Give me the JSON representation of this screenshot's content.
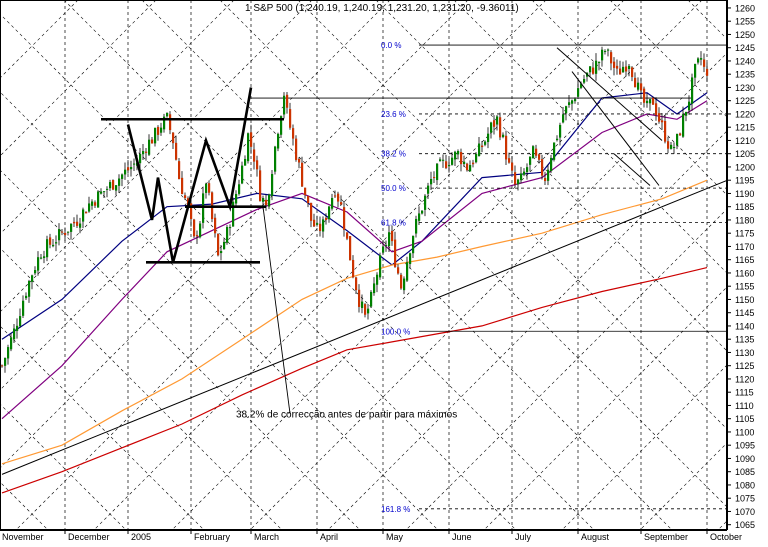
{
  "chart_data": {
    "type": "candlestick",
    "header": "1 S&P 500 (1,240.19, 1,240.19, 1,231.20, 1,231.20, -9.36011)",
    "x_months": [
      "November",
      "December",
      "2005",
      "February",
      "March",
      "April",
      "May",
      "June",
      "July",
      "August",
      "September",
      "October"
    ],
    "y_ticks": [
      1065,
      1070,
      1075,
      1080,
      1085,
      1090,
      1095,
      1100,
      1105,
      1110,
      1115,
      1120,
      1125,
      1130,
      1135,
      1140,
      1145,
      1150,
      1155,
      1160,
      1165,
      1170,
      1175,
      1180,
      1185,
      1190,
      1195,
      1200,
      1205,
      1210,
      1215,
      1220,
      1225,
      1230,
      1235,
      1240,
      1245,
      1250,
      1255,
      1260
    ],
    "ylim": [
      1063,
      1263
    ],
    "price_path": [
      [
        0,
        1125
      ],
      [
        4,
        1138
      ],
      [
        7,
        1150
      ],
      [
        10,
        1160
      ],
      [
        13,
        1168
      ],
      [
        17,
        1172
      ],
      [
        21,
        1176
      ],
      [
        25,
        1180
      ],
      [
        29,
        1186
      ],
      [
        33,
        1190
      ],
      [
        37,
        1194
      ],
      [
        41,
        1198
      ],
      [
        45,
        1202
      ],
      [
        48,
        1208
      ],
      [
        51,
        1212
      ],
      [
        53,
        1216
      ],
      [
        55,
        1218
      ],
      [
        57,
        1210
      ],
      [
        59,
        1196
      ],
      [
        60,
        1192
      ],
      [
        62,
        1184
      ],
      [
        64,
        1172
      ],
      [
        66,
        1180
      ],
      [
        68,
        1195
      ],
      [
        70,
        1180
      ],
      [
        72,
        1166
      ],
      [
        75,
        1175
      ],
      [
        78,
        1190
      ],
      [
        80,
        1200
      ],
      [
        82,
        1212
      ],
      [
        84,
        1204
      ],
      [
        86,
        1190
      ],
      [
        88,
        1185
      ],
      [
        90,
        1200
      ],
      [
        92,
        1215
      ],
      [
        94,
        1228
      ],
      [
        95,
        1220
      ],
      [
        97,
        1210
      ],
      [
        99,
        1200
      ],
      [
        101,
        1190
      ],
      [
        103,
        1180
      ],
      [
        105,
        1176
      ],
      [
        107,
        1178
      ],
      [
        109,
        1186
      ],
      [
        111,
        1192
      ],
      [
        113,
        1185
      ],
      [
        115,
        1172
      ],
      [
        117,
        1160
      ],
      [
        119,
        1150
      ],
      [
        121,
        1143
      ],
      [
        123,
        1150
      ],
      [
        125,
        1160
      ],
      [
        127,
        1168
      ],
      [
        129,
        1175
      ],
      [
        131,
        1165
      ],
      [
        133,
        1155
      ],
      [
        135,
        1165
      ],
      [
        137,
        1175
      ],
      [
        140,
        1185
      ],
      [
        143,
        1195
      ],
      [
        146,
        1200
      ],
      [
        149,
        1203
      ],
      [
        152,
        1205
      ],
      [
        155,
        1200
      ],
      [
        158,
        1204
      ],
      [
        161,
        1210
      ],
      [
        163,
        1215
      ],
      [
        165,
        1218
      ],
      [
        167,
        1210
      ],
      [
        169,
        1200
      ],
      [
        171,
        1193
      ],
      [
        173,
        1195
      ],
      [
        175,
        1200
      ],
      [
        177,
        1205
      ],
      [
        179,
        1200
      ],
      [
        181,
        1196
      ],
      [
        183,
        1205
      ],
      [
        185,
        1212
      ],
      [
        187,
        1220
      ],
      [
        190,
        1225
      ],
      [
        193,
        1232
      ],
      [
        196,
        1236
      ],
      [
        199,
        1240
      ],
      [
        201,
        1244
      ],
      [
        203,
        1240
      ],
      [
        205,
        1235
      ],
      [
        207,
        1238
      ],
      [
        209,
        1240
      ],
      [
        211,
        1233
      ],
      [
        213,
        1226
      ],
      [
        215,
        1222
      ],
      [
        217,
        1225
      ],
      [
        219,
        1218
      ],
      [
        221,
        1212
      ],
      [
        223,
        1206
      ],
      [
        225,
        1210
      ],
      [
        227,
        1218
      ],
      [
        229,
        1226
      ],
      [
        231,
        1236
      ],
      [
        233,
        1241
      ],
      [
        235,
        1233
      ]
    ],
    "moving_averages": [
      {
        "color": "#000080",
        "points": [
          [
            0,
            1135
          ],
          [
            20,
            1150
          ],
          [
            40,
            1172
          ],
          [
            55,
            1185
          ],
          [
            70,
            1186
          ],
          [
            85,
            1190
          ],
          [
            100,
            1188
          ],
          [
            115,
            1176
          ],
          [
            130,
            1163
          ],
          [
            140,
            1172
          ],
          [
            160,
            1196
          ],
          [
            180,
            1198
          ],
          [
            200,
            1226
          ],
          [
            215,
            1228
          ],
          [
            225,
            1220
          ],
          [
            235,
            1228
          ]
        ]
      },
      {
        "color": "#800080",
        "points": [
          [
            0,
            1105
          ],
          [
            20,
            1125
          ],
          [
            40,
            1150
          ],
          [
            55,
            1168
          ],
          [
            70,
            1176
          ],
          [
            85,
            1184
          ],
          [
            100,
            1190
          ],
          [
            115,
            1183
          ],
          [
            130,
            1168
          ],
          [
            140,
            1172
          ],
          [
            160,
            1190
          ],
          [
            180,
            1196
          ],
          [
            200,
            1213
          ],
          [
            215,
            1220
          ],
          [
            225,
            1218
          ],
          [
            235,
            1225
          ]
        ]
      },
      {
        "color": "#ff9933",
        "points": [
          [
            0,
            1088
          ],
          [
            20,
            1095
          ],
          [
            40,
            1108
          ],
          [
            60,
            1120
          ],
          [
            80,
            1135
          ],
          [
            100,
            1150
          ],
          [
            115,
            1158
          ],
          [
            130,
            1163
          ],
          [
            145,
            1166
          ],
          [
            160,
            1170
          ],
          [
            180,
            1175
          ],
          [
            200,
            1182
          ],
          [
            220,
            1188
          ],
          [
            235,
            1195
          ]
        ]
      },
      {
        "color": "#cc0000",
        "points": [
          [
            0,
            1077
          ],
          [
            20,
            1085
          ],
          [
            40,
            1094
          ],
          [
            60,
            1103
          ],
          [
            80,
            1114
          ],
          [
            100,
            1124
          ],
          [
            115,
            1131
          ],
          [
            130,
            1134
          ],
          [
            145,
            1137
          ],
          [
            160,
            1140
          ],
          [
            180,
            1147
          ],
          [
            200,
            1153
          ],
          [
            220,
            1158
          ],
          [
            235,
            1162
          ]
        ]
      }
    ],
    "trendline": {
      "from": [
        0,
        1084
      ],
      "to": [
        244,
        1196
      ]
    },
    "fibonacci": [
      {
        "label": "0.0 %",
        "value": 1246,
        "from": 129,
        "to": 244,
        "dashed": false
      },
      {
        "label": "23.6 %",
        "value": 1220,
        "from": 129,
        "to": 244,
        "dashed": true
      },
      {
        "label": "38.2 %",
        "value": 1205,
        "from": 129,
        "to": 244,
        "dashed": true
      },
      {
        "label": "50.0 %",
        "value": 1192,
        "from": 129,
        "to": 244,
        "dashed": true
      },
      {
        "label": "61.8 %",
        "value": 1179,
        "from": 129,
        "to": 244,
        "dashed": true
      },
      {
        "label": "100.0 %",
        "value": 1138,
        "from": 129,
        "to": 244,
        "dashed": false
      },
      {
        "label": "161.8 %",
        "value": 1071,
        "from": 129,
        "to": 244,
        "dashed": true
      }
    ],
    "resistance_line": {
      "from": [
        83,
        1226
      ],
      "to": [
        230,
        1226
      ]
    },
    "pattern": {
      "top_line": {
        "from": [
          33,
          1218
        ],
        "to": [
          94,
          1218
        ]
      },
      "mid_line": {
        "from": [
          61,
          1185
        ],
        "to": [
          88,
          1185
        ]
      },
      "bottom_line": {
        "from": [
          48,
          1164
        ],
        "to": [
          86,
          1164
        ]
      },
      "zigzag": [
        [
          42,
          1216
        ],
        [
          50,
          1180
        ],
        [
          52,
          1196
        ],
        [
          57,
          1164
        ],
        [
          68,
          1210
        ],
        [
          76,
          1185
        ],
        [
          83,
          1230
        ]
      ],
      "pointer": {
        "from": [
          87,
          1185
        ],
        "to": [
          96,
          1107
        ]
      }
    },
    "channel": [
      {
        "from": [
          185,
          1245
        ],
        "to": [
          220,
          1210
        ]
      },
      {
        "from": [
          190,
          1236
        ],
        "to": [
          219,
          1193
        ]
      },
      {
        "from": [
          204,
          1205
        ],
        "to": [
          216,
          1193
        ]
      }
    ],
    "annotation": "38.2% de correcção antes de partir para máximos"
  },
  "colors": {
    "grid": "#000000",
    "candle_up": "#008000",
    "candle_down": "#cc3300",
    "fib_text": "#0000cc",
    "text": "#000000"
  }
}
